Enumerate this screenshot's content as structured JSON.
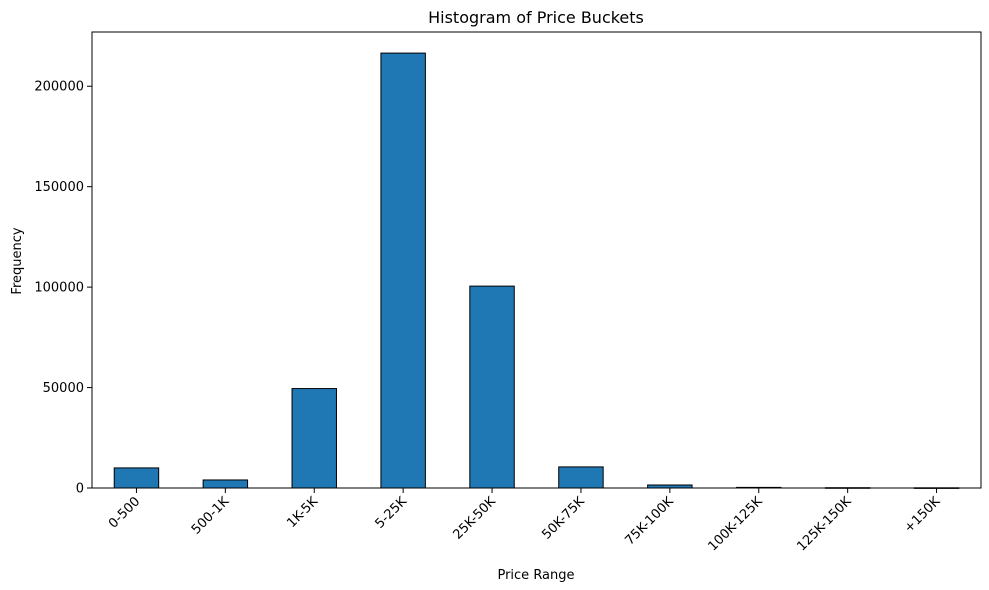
{
  "chart_data": {
    "type": "bar",
    "title": "Histogram of Price Buckets",
    "xlabel": "Price Range",
    "ylabel": "Frequency",
    "categories": [
      "0-500",
      "500-1K",
      "1K-5K",
      "5-25K",
      "25K-50K",
      "50K-75K",
      "75K-100K",
      "100K-125K",
      "125K-150K",
      "+150K"
    ],
    "values": [
      10000,
      4000,
      49500,
      216500,
      100500,
      10500,
      1500,
      300,
      150,
      100
    ],
    "ylim": [
      0,
      227000
    ],
    "yticks": [
      0,
      50000,
      100000,
      150000,
      200000
    ],
    "ytick_labels": [
      "0",
      "50000",
      "100000",
      "150000",
      "200000"
    ],
    "grid": false,
    "legend": "none",
    "bar_color": "#1f77b4",
    "edge_color": "#000000"
  }
}
